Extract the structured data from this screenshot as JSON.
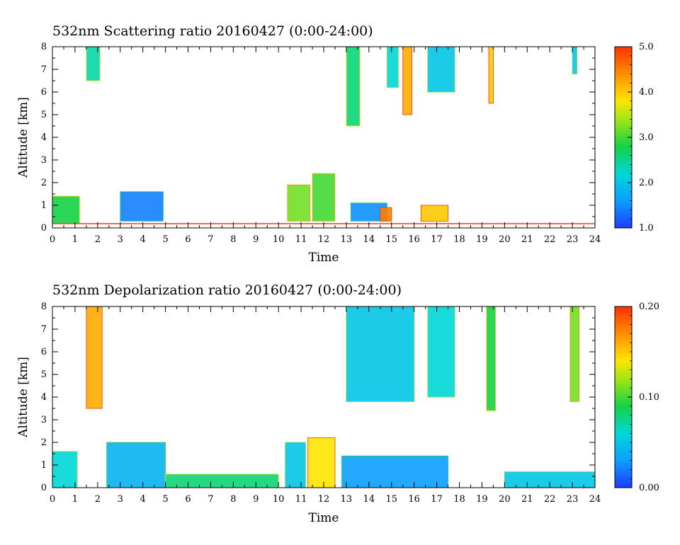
{
  "chart_data": [
    {
      "type": "heatmap",
      "title": "532nm Scattering ratio  20160427 (0:00-24:00)",
      "xlabel": "Time",
      "ylabel": "Altitude [km]",
      "xlim": [
        0,
        24
      ],
      "ylim": [
        0,
        8
      ],
      "x_ticks": [
        "0",
        "1",
        "2",
        "3",
        "4",
        "5",
        "6",
        "7",
        "8",
        "9",
        "10",
        "11",
        "12",
        "13",
        "14",
        "15",
        "16",
        "17",
        "18",
        "19",
        "20",
        "21",
        "22",
        "23",
        "24"
      ],
      "y_ticks": [
        "0",
        "1",
        "2",
        "3",
        "4",
        "5",
        "6",
        "7",
        "8"
      ],
      "colorbar": {
        "min": 1.0,
        "max": 5.0,
        "ticks": [
          "1.0",
          "2.0",
          "3.0",
          "4.0",
          "5.0"
        ]
      },
      "colors": {
        "low": "#1e3cff",
        "high": "#ff3c00",
        "baseline": "#ff3c00"
      },
      "features": [
        {
          "x0": 1.5,
          "x1": 2.1,
          "alt0": 6.5,
          "alt1": 8.0,
          "value": 2.4
        },
        {
          "x0": 0.0,
          "x1": 1.2,
          "alt0": 0.2,
          "alt1": 1.4,
          "value": 2.8
        },
        {
          "x0": 3.0,
          "x1": 4.9,
          "alt0": 0.3,
          "alt1": 1.6,
          "value": 1.4
        },
        {
          "x0": 10.4,
          "x1": 11.4,
          "alt0": 0.3,
          "alt1": 1.9,
          "value": 3.2
        },
        {
          "x0": 11.5,
          "x1": 12.5,
          "alt0": 0.3,
          "alt1": 2.4,
          "value": 3.0
        },
        {
          "x0": 13.0,
          "x1": 13.6,
          "alt0": 4.5,
          "alt1": 8.0,
          "value": 2.6
        },
        {
          "x0": 13.2,
          "x1": 14.8,
          "alt0": 0.3,
          "alt1": 1.1,
          "value": 1.5
        },
        {
          "x0": 14.5,
          "x1": 15.0,
          "alt0": 0.3,
          "alt1": 0.9,
          "value": 4.5
        },
        {
          "x0": 14.8,
          "x1": 15.3,
          "alt0": 6.2,
          "alt1": 8.0,
          "value": 2.2
        },
        {
          "x0": 15.5,
          "x1": 15.9,
          "alt0": 5.0,
          "alt1": 8.0,
          "value": 4.2
        },
        {
          "x0": 16.3,
          "x1": 17.5,
          "alt0": 0.3,
          "alt1": 1.0,
          "value": 4.0
        },
        {
          "x0": 16.6,
          "x1": 17.8,
          "alt0": 6.0,
          "alt1": 8.0,
          "value": 2.0
        },
        {
          "x0": 19.3,
          "x1": 19.5,
          "alt0": 5.5,
          "alt1": 8.0,
          "value": 4.0
        },
        {
          "x0": 23.0,
          "x1": 23.2,
          "alt0": 6.8,
          "alt1": 8.0,
          "value": 2.0
        }
      ]
    },
    {
      "type": "heatmap",
      "title": "532nm Depolarization ratio  20160427 (0:00-24:00)",
      "xlabel": "Time",
      "ylabel": "Altitude [km]",
      "xlim": [
        0,
        24
      ],
      "ylim": [
        0,
        8
      ],
      "x_ticks": [
        "0",
        "1",
        "2",
        "3",
        "4",
        "5",
        "6",
        "7",
        "8",
        "9",
        "10",
        "11",
        "12",
        "13",
        "14",
        "15",
        "16",
        "17",
        "18",
        "19",
        "20",
        "21",
        "22",
        "23",
        "24"
      ],
      "y_ticks": [
        "0",
        "1",
        "2",
        "3",
        "4",
        "5",
        "6",
        "7",
        "8"
      ],
      "colorbar": {
        "min": 0.0,
        "max": 0.2,
        "ticks": [
          "0.00",
          "0.10",
          "0.20"
        ]
      },
      "colors": {
        "low": "#1e3cff",
        "high": "#ff3c00"
      },
      "features": [
        {
          "x0": 0.0,
          "x1": 1.1,
          "alt0": 0.0,
          "alt1": 1.6,
          "value": 0.06
        },
        {
          "x0": 2.4,
          "x1": 5.0,
          "alt0": 0.0,
          "alt1": 2.0,
          "value": 0.04
        },
        {
          "x0": 1.5,
          "x1": 2.2,
          "alt0": 3.5,
          "alt1": 8.0,
          "value": 0.16
        },
        {
          "x0": 5.0,
          "x1": 10.0,
          "alt0": 0.0,
          "alt1": 0.6,
          "value": 0.08
        },
        {
          "x0": 10.3,
          "x1": 11.2,
          "alt0": 0.0,
          "alt1": 2.0,
          "value": 0.05
        },
        {
          "x0": 11.3,
          "x1": 12.5,
          "alt0": 0.0,
          "alt1": 2.2,
          "value": 0.14
        },
        {
          "x0": 12.8,
          "x1": 17.5,
          "alt0": 0.0,
          "alt1": 1.4,
          "value": 0.03
        },
        {
          "x0": 13.0,
          "x1": 16.0,
          "alt0": 3.8,
          "alt1": 8.0,
          "value": 0.05
        },
        {
          "x0": 16.6,
          "x1": 17.8,
          "alt0": 4.0,
          "alt1": 8.0,
          "value": 0.06
        },
        {
          "x0": 19.2,
          "x1": 19.6,
          "alt0": 3.4,
          "alt1": 8.0,
          "value": 0.09
        },
        {
          "x0": 22.9,
          "x1": 23.3,
          "alt0": 3.8,
          "alt1": 8.0,
          "value": 0.11
        },
        {
          "x0": 20.0,
          "x1": 24.0,
          "alt0": 0.0,
          "alt1": 0.7,
          "value": 0.05
        }
      ]
    }
  ]
}
